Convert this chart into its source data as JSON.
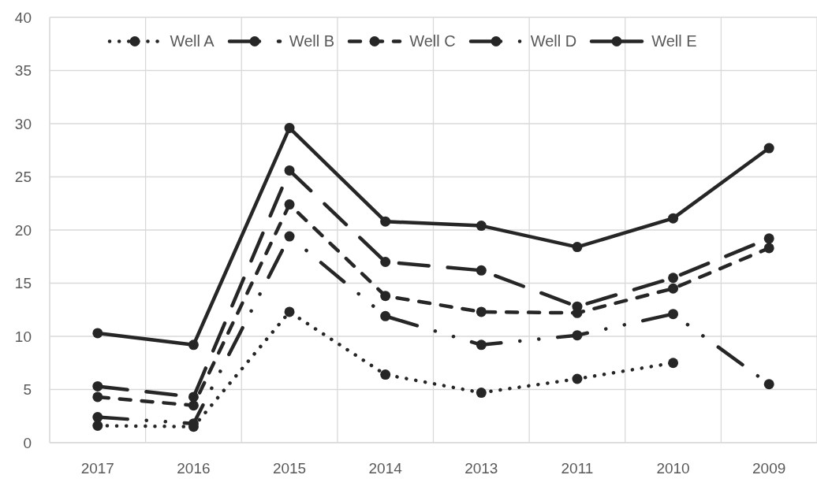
{
  "chart_data": {
    "type": "line",
    "categories": [
      "2017",
      "2016",
      "2015",
      "2014",
      "2013",
      "2011",
      "2010",
      "2009"
    ],
    "series": [
      {
        "name": "Well A",
        "color": "#262626",
        "line_style": "dotted",
        "values": [
          1.6,
          1.5,
          12.3,
          6.4,
          4.7,
          6.0,
          7.5,
          null
        ]
      },
      {
        "name": "Well B",
        "color": "#262626",
        "line_style": "longdash",
        "values": [
          5.3,
          4.3,
          25.6,
          17.0,
          16.2,
          12.8,
          15.5,
          19.2
        ]
      },
      {
        "name": "Well C",
        "color": "#262626",
        "line_style": "dashed",
        "values": [
          4.3,
          3.5,
          22.4,
          13.8,
          12.3,
          12.2,
          14.5,
          18.3
        ]
      },
      {
        "name": "Well D",
        "color": "#262626",
        "line_style": "dashdotdot",
        "values": [
          2.4,
          1.8,
          19.4,
          11.9,
          9.2,
          10.1,
          12.1,
          5.5
        ]
      },
      {
        "name": "Well E",
        "color": "#262626",
        "line_style": "solid",
        "values": [
          10.3,
          9.2,
          29.6,
          20.8,
          20.4,
          18.4,
          21.1,
          27.7
        ]
      }
    ],
    "ylim": [
      0,
      40
    ],
    "yticks": [
      0,
      5,
      10,
      15,
      20,
      25,
      30,
      35,
      40
    ],
    "grid": true,
    "legend": "top",
    "marker": "circle"
  }
}
